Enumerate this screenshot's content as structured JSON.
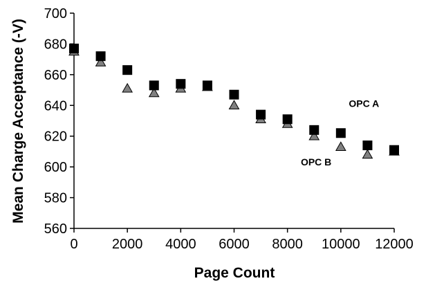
{
  "chart_data": {
    "type": "scatter",
    "xlabel": "Page Count",
    "ylabel": "Mean Charge Acceptance (-V)",
    "xlim": [
      0,
      12000
    ],
    "ylim": [
      560,
      700
    ],
    "xticks": [
      0,
      2000,
      4000,
      6000,
      8000,
      10000,
      12000
    ],
    "yticks": [
      560,
      580,
      600,
      620,
      640,
      660,
      680,
      700
    ],
    "xtick_labels": [
      "0",
      "2000",
      "4000",
      "6000",
      "8000",
      "10000",
      "12000"
    ],
    "ytick_labels": [
      "560",
      "580",
      "600",
      "620",
      "640",
      "660",
      "680",
      "700"
    ],
    "grid": false,
    "legend": "none",
    "series": [
      {
        "name": "OPC A",
        "marker": "square",
        "color": "#000000",
        "x": [
          0,
          1000,
          2000,
          3000,
          4000,
          5000,
          6000,
          7000,
          8000,
          9000,
          10000,
          11000,
          12000
        ],
        "y": [
          677,
          672,
          663,
          653,
          654,
          653,
          647,
          634,
          631,
          624,
          622,
          614,
          611
        ]
      },
      {
        "name": "OPC B",
        "marker": "triangle",
        "color": "#808080",
        "x": [
          0,
          1000,
          2000,
          3000,
          4000,
          5000,
          6000,
          7000,
          8000,
          9000,
          10000,
          11000,
          12000
        ],
        "y": [
          675,
          668,
          651,
          648,
          651,
          652,
          640,
          631,
          628,
          620,
          613,
          608,
          610
        ]
      }
    ],
    "annotations": [
      {
        "text": "OPC A",
        "x": 10300,
        "y": 639
      },
      {
        "text": "OPC B",
        "x": 8500,
        "y": 601
      }
    ]
  }
}
